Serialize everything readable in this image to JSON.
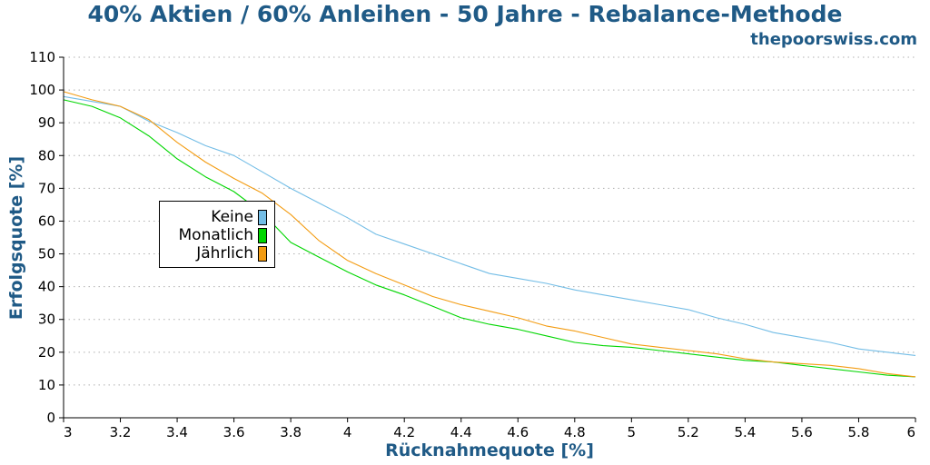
{
  "chart_data": {
    "type": "line",
    "title": "40% Aktien / 60% Anleihen - 50 Jahre - Rebalance-Methode",
    "subtitle": "thepoorswiss.com",
    "xlabel": "Rücknahmequote [%]",
    "ylabel": "Erfolgsquote [%]",
    "xlim": [
      3,
      6
    ],
    "ylim": [
      0,
      110
    ],
    "xticks": [
      "3",
      "3.2",
      "3.4",
      "3.6",
      "3.8",
      "4",
      "4.2",
      "4.4",
      "4.6",
      "4.8",
      "5",
      "5.2",
      "5.4",
      "5.6",
      "5.8",
      "6"
    ],
    "yticks": [
      "0",
      "10",
      "20",
      "30",
      "40",
      "50",
      "60",
      "70",
      "80",
      "90",
      "100",
      "110"
    ],
    "grid": true,
    "legend_position": "left",
    "x": [
      3.0,
      3.1,
      3.2,
      3.3,
      3.4,
      3.5,
      3.6,
      3.7,
      3.8,
      3.9,
      4.0,
      4.1,
      4.2,
      4.3,
      4.4,
      4.5,
      4.6,
      4.7,
      4.8,
      4.9,
      5.0,
      5.1,
      5.2,
      5.3,
      5.4,
      5.5,
      5.6,
      5.7,
      5.8,
      5.9,
      6.0
    ],
    "series": [
      {
        "name": "Keine",
        "color": "#73bde6",
        "values": [
          98,
          96.5,
          95,
          90.5,
          87,
          83,
          80,
          75,
          70,
          65.5,
          61,
          56,
          53,
          50,
          47,
          44,
          42.5,
          41,
          39,
          37.5,
          36,
          34.5,
          33,
          30.5,
          28.5,
          26,
          24.5,
          23,
          21,
          20,
          19
        ]
      },
      {
        "name": "Monatlich",
        "color": "#00d600",
        "values": [
          97,
          95,
          91.5,
          86,
          79,
          73.5,
          69,
          62.5,
          53.5,
          49,
          44.5,
          40.5,
          37.5,
          34,
          30.5,
          28.5,
          27,
          25,
          23,
          22,
          21.5,
          20.5,
          19.5,
          18.5,
          17.5,
          17,
          16,
          15,
          14,
          13,
          12.5
        ]
      },
      {
        "name": "Jährlich",
        "color": "#f39c12",
        "values": [
          99.5,
          97,
          95,
          91,
          84,
          78,
          73,
          68.5,
          62,
          54,
          48,
          44,
          40.5,
          37,
          34.5,
          32.5,
          30.5,
          28,
          26.5,
          24.5,
          22.5,
          21.5,
          20.5,
          19.5,
          18,
          17,
          16.5,
          16,
          15,
          13.5,
          12.5
        ]
      }
    ]
  }
}
